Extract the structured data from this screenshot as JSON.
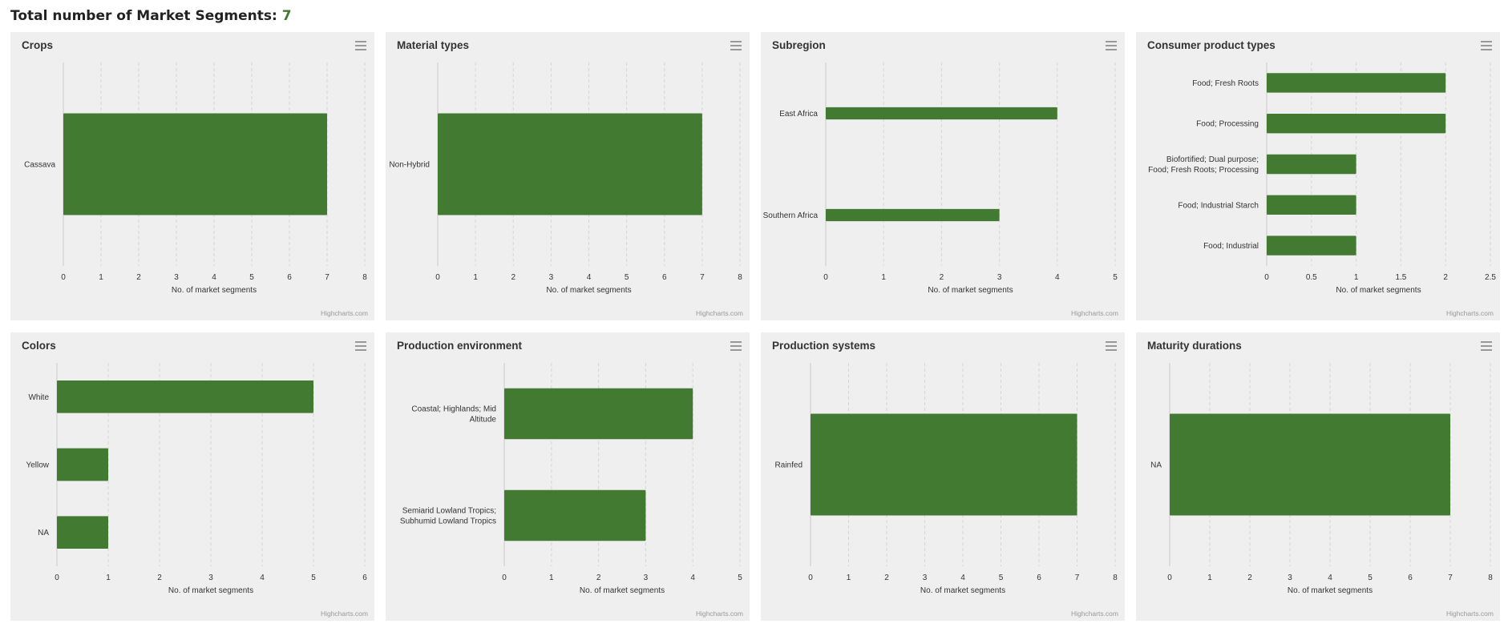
{
  "header": {
    "label": "Total number of Market Segments:",
    "count": "7"
  },
  "colors": {
    "bar": "#437a32",
    "grid": "#d6d6d6",
    "axis": "#c8c8c8",
    "card": "#efefef"
  },
  "credits_text": "Highcharts.com",
  "menu_icon": "hamburger-menu-icon",
  "chart_data": [
    {
      "type": "bar",
      "title": "Crops",
      "categories": [
        "Cassava"
      ],
      "values": [
        7
      ],
      "xlabel": "No. of market segments",
      "xlim": [
        0,
        8
      ],
      "ticks": [
        0,
        1,
        2,
        3,
        4,
        5,
        6,
        7,
        8
      ]
    },
    {
      "type": "bar",
      "title": "Material types",
      "categories": [
        "Non-Hybrid"
      ],
      "values": [
        7
      ],
      "xlabel": "No. of market segments",
      "xlim": [
        0,
        8
      ],
      "ticks": [
        0,
        1,
        2,
        3,
        4,
        5,
        6,
        7,
        8
      ]
    },
    {
      "type": "bar",
      "title": "Subregion",
      "categories": [
        "East Africa",
        "Southern Africa"
      ],
      "values": [
        4,
        3
      ],
      "xlabel": "No. of market segments",
      "xlim": [
        0,
        5
      ],
      "ticks": [
        0,
        1,
        2,
        3,
        4,
        5
      ]
    },
    {
      "type": "bar",
      "title": "Consumer product types",
      "categories": [
        "Food; Fresh Roots",
        "Food; Processing",
        "Biofortified; Dual purpose; Food; Fresh Roots; Processing",
        "Food; Industrial Starch",
        "Food; Industrial"
      ],
      "category_lines": [
        [
          "Food; Fresh Roots"
        ],
        [
          "Food; Processing"
        ],
        [
          "Biofortified; Dual purpose;",
          "Food; Fresh Roots; Processing"
        ],
        [
          "Food; Industrial Starch"
        ],
        [
          "Food; Industrial"
        ]
      ],
      "values": [
        2,
        2,
        1,
        1,
        1
      ],
      "xlabel": "No. of market segments",
      "xlim": [
        0,
        2.5
      ],
      "ticks": [
        0,
        0.5,
        1,
        1.5,
        2,
        2.5
      ]
    },
    {
      "type": "bar",
      "title": "Colors",
      "categories": [
        "White",
        "Yellow",
        "NA"
      ],
      "values": [
        5,
        1,
        1
      ],
      "xlabel": "No. of market segments",
      "xlim": [
        0,
        6
      ],
      "ticks": [
        0,
        1,
        2,
        3,
        4,
        5,
        6
      ]
    },
    {
      "type": "bar",
      "title": "Production environment",
      "categories": [
        "Coastal; Highlands; Mid Altitude",
        "Semiarid Lowland Tropics; Subhumid Lowland Tropics"
      ],
      "category_lines": [
        [
          "Coastal; Highlands; Mid",
          "Altitude"
        ],
        [
          "Semiarid Lowland Tropics;",
          "Subhumid Lowland Tropics"
        ]
      ],
      "values": [
        4,
        3
      ],
      "xlabel": "No. of market segments",
      "xlim": [
        0,
        5
      ],
      "ticks": [
        0,
        1,
        2,
        3,
        4,
        5
      ]
    },
    {
      "type": "bar",
      "title": "Production systems",
      "categories": [
        "Rainfed"
      ],
      "values": [
        7
      ],
      "xlabel": "No. of market segments",
      "xlim": [
        0,
        8
      ],
      "ticks": [
        0,
        1,
        2,
        3,
        4,
        5,
        6,
        7,
        8
      ]
    },
    {
      "type": "bar",
      "title": "Maturity durations",
      "categories": [
        "NA"
      ],
      "values": [
        7
      ],
      "xlabel": "No. of market segments",
      "xlim": [
        0,
        8
      ],
      "ticks": [
        0,
        1,
        2,
        3,
        4,
        5,
        6,
        7,
        8
      ]
    }
  ]
}
